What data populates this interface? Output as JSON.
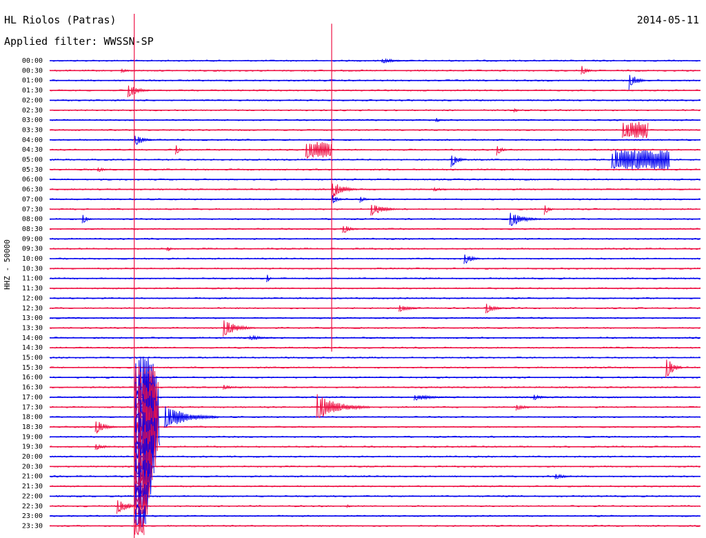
{
  "header": {
    "station": "HL Riolos (Patras)",
    "date": "2014-05-11",
    "filter": "Applied filter: WWSSN-SP"
  },
  "colors": {
    "blue": "#0000ee",
    "red": "#ee1144"
  },
  "chart_data": {
    "type": "line",
    "title": "HL Riolos (Patras)",
    "subtitle": "Applied filter: WWSSN-SP",
    "ylabel": "HHZ - 50000",
    "rows": [
      "00:00",
      "00:30",
      "01:00",
      "01:30",
      "02:00",
      "02:30",
      "03:00",
      "03:30",
      "04:00",
      "04:30",
      "05:00",
      "05:30",
      "06:00",
      "06:30",
      "07:00",
      "07:30",
      "08:00",
      "08:30",
      "09:00",
      "09:30",
      "10:00",
      "10:30",
      "11:00",
      "11:30",
      "12:00",
      "12:30",
      "13:00",
      "13:30",
      "14:00",
      "14:30",
      "15:00",
      "15:30",
      "16:00",
      "16:30",
      "17:00",
      "17:30",
      "18:00",
      "18:30",
      "19:00",
      "19:30",
      "20:00",
      "20:30",
      "21:00",
      "21:30",
      "22:00",
      "22:30",
      "23:00",
      "23:30"
    ],
    "trace_colors": [
      "blue",
      "red"
    ],
    "x_unit": "minutes within row",
    "xlim": [
      0,
      30
    ],
    "events": [
      {
        "row": "00:00",
        "x": 15.3,
        "amp": 4,
        "dur": 1.5
      },
      {
        "row": "00:30",
        "x": 3.3,
        "amp": 4,
        "dur": 0.6
      },
      {
        "row": "00:30",
        "x": 24.5,
        "amp": 8,
        "dur": 0.6
      },
      {
        "row": "01:00",
        "x": 26.7,
        "amp": 14,
        "dur": 0.8
      },
      {
        "row": "01:30",
        "x": 3.6,
        "amp": 12,
        "dur": 1.0
      },
      {
        "row": "02:30",
        "x": 21.4,
        "amp": 4,
        "dur": 0.4
      },
      {
        "row": "03:00",
        "x": 17.8,
        "amp": 4,
        "dur": 0.5
      },
      {
        "row": "03:30",
        "x": 26.4,
        "amp": 12,
        "dur": 1.2,
        "burst": true
      },
      {
        "row": "04:00",
        "x": 3.9,
        "amp": 9,
        "dur": 1.0
      },
      {
        "row": "04:30",
        "x": 5.8,
        "amp": 10,
        "dur": 0.4
      },
      {
        "row": "04:30",
        "x": 11.8,
        "amp": 12,
        "dur": 1.2,
        "burst": true
      },
      {
        "row": "04:30",
        "x": 20.6,
        "amp": 10,
        "dur": 0.5
      },
      {
        "row": "05:00",
        "x": 18.5,
        "amp": 12,
        "dur": 0.7
      },
      {
        "row": "05:00",
        "x": 25.9,
        "amp": 14,
        "dur": 2.7,
        "burst": true
      },
      {
        "row": "05:30",
        "x": 2.2,
        "amp": 4,
        "dur": 0.8
      },
      {
        "row": "06:30",
        "x": 13.0,
        "amp": 14,
        "dur": 1.2
      },
      {
        "row": "06:30",
        "x": 17.7,
        "amp": 3,
        "dur": 1.0
      },
      {
        "row": "07:00",
        "x": 13.0,
        "amp": 8,
        "dur": 0.6
      },
      {
        "row": "07:00",
        "x": 14.3,
        "amp": 6,
        "dur": 0.5
      },
      {
        "row": "07:30",
        "x": 14.8,
        "amp": 10,
        "dur": 1.4
      },
      {
        "row": "07:30",
        "x": 22.8,
        "amp": 9,
        "dur": 0.5
      },
      {
        "row": "08:00",
        "x": 1.5,
        "amp": 8,
        "dur": 0.5
      },
      {
        "row": "08:00",
        "x": 21.2,
        "amp": 12,
        "dur": 1.5
      },
      {
        "row": "08:30",
        "x": 13.5,
        "amp": 8,
        "dur": 0.8
      },
      {
        "row": "09:30",
        "x": 5.4,
        "amp": 5,
        "dur": 0.4
      },
      {
        "row": "10:00",
        "x": 19.1,
        "amp": 10,
        "dur": 0.8
      },
      {
        "row": "11:00",
        "x": 10.0,
        "amp": 8,
        "dur": 0.3
      },
      {
        "row": "12:30",
        "x": 16.1,
        "amp": 6,
        "dur": 1.2
      },
      {
        "row": "12:30",
        "x": 20.1,
        "amp": 8,
        "dur": 1.0
      },
      {
        "row": "13:30",
        "x": 8.0,
        "amp": 14,
        "dur": 1.5
      },
      {
        "row": "14:00",
        "x": 9.2,
        "amp": 4,
        "dur": 1.5
      },
      {
        "row": "15:30",
        "x": 28.4,
        "amp": 18,
        "dur": 0.8
      },
      {
        "row": "16:30",
        "x": 8.0,
        "amp": 4,
        "dur": 1.0
      },
      {
        "row": "17:00",
        "x": 16.8,
        "amp": 5,
        "dur": 2.0
      },
      {
        "row": "17:00",
        "x": 22.3,
        "amp": 5,
        "dur": 0.8
      },
      {
        "row": "17:30",
        "x": 12.3,
        "amp": 20,
        "dur": 2.5
      },
      {
        "row": "17:30",
        "x": 21.5,
        "amp": 5,
        "dur": 1.0
      },
      {
        "row": "18:00",
        "x": 5.3,
        "amp": 20,
        "dur": 2.5
      },
      {
        "row": "18:30",
        "x": 2.1,
        "amp": 12,
        "dur": 1.0
      },
      {
        "row": "19:30",
        "x": 2.1,
        "amp": 5,
        "dur": 1.0
      },
      {
        "row": "21:00",
        "x": 23.3,
        "amp": 4,
        "dur": 1.2
      },
      {
        "row": "22:30",
        "x": 3.1,
        "amp": 12,
        "dur": 1.2
      },
      {
        "row": "22:30",
        "x": 13.7,
        "amp": 3,
        "dur": 0.4
      }
    ],
    "teleseism": {
      "x": 3.9,
      "start_row": "17:30",
      "peak_row": "18:00"
    },
    "spikes": [
      {
        "x": 3.9,
        "from_row": "00:00",
        "to_row": "23:30",
        "label": "glitch"
      },
      {
        "x": 13.0,
        "from_row": "00:30",
        "to_row": "14:00",
        "label": "glitch"
      }
    ]
  }
}
